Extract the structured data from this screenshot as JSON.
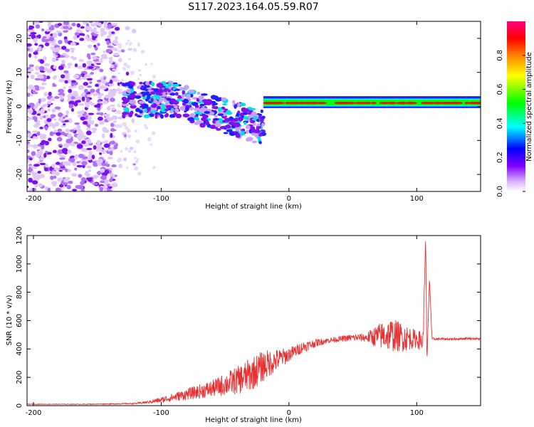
{
  "title": "S117.2023.164.05.59.R07",
  "chart_data": [
    {
      "type": "heatmap",
      "xlabel": "Height of straight line (km)",
      "ylabel": "Frequency (Hz)",
      "xlim": [
        -205,
        150
      ],
      "ylim": [
        -25,
        25
      ],
      "xticks": [
        -200,
        -100,
        0,
        100
      ],
      "yticks": [
        -20,
        -10,
        0,
        10,
        20
      ],
      "colorbar": {
        "label": "Normalized spectral amplitude",
        "range": [
          0,
          1
        ],
        "ticks": [
          0.0,
          0.2,
          0.4,
          0.6,
          0.8
        ],
        "colors": [
          "#ffffff",
          "#c080ff",
          "#8000ff",
          "#0000ff",
          "#00ffff",
          "#00ff00",
          "#ffff00",
          "#ff8000",
          "#ff0000",
          "#ff0080"
        ]
      },
      "description_regions": [
        {
          "x": [
            -205,
            -135
          ],
          "y": [
            -25,
            25
          ],
          "amplitude": 0.1
        },
        {
          "x": [
            -130,
            -20
          ],
          "y": [
            -10,
            8
          ],
          "amplitude": 0.3
        },
        {
          "x": [
            -20,
            150
          ],
          "y": [
            0,
            2
          ],
          "amplitude": 0.85
        }
      ]
    },
    {
      "type": "line",
      "xlabel": "Height of straight line (km)",
      "ylabel": "SNR (10 * v/v)",
      "xlim": [
        -205,
        150
      ],
      "ylim": [
        0,
        1200
      ],
      "xticks": [
        -200,
        -100,
        0,
        100
      ],
      "yticks": [
        0,
        200,
        400,
        600,
        800,
        1000,
        1200
      ],
      "color": "#e83030",
      "series": [
        {
          "x": [
            -205,
            -180,
            -160,
            -140,
            -120,
            -110,
            -100,
            -90,
            -80,
            -70,
            -60,
            -50,
            -40,
            -30,
            -20,
            -10,
            0,
            10,
            20,
            30,
            40,
            50,
            60,
            70,
            80,
            90,
            100,
            105,
            107,
            108,
            110,
            112,
            115,
            120,
            130,
            140,
            150
          ],
          "y": [
            10,
            10,
            10,
            12,
            15,
            25,
            40,
            60,
            80,
            100,
            120,
            150,
            180,
            220,
            280,
            320,
            360,
            410,
            440,
            460,
            470,
            480,
            480,
            490,
            500,
            480,
            470,
            450,
            1200,
            300,
            900,
            470,
            470,
            470,
            470,
            475,
            470
          ],
          "noise": [
            2,
            2,
            2,
            3,
            5,
            10,
            20,
            30,
            40,
            50,
            60,
            80,
            100,
            120,
            110,
            80,
            50,
            40,
            30,
            20,
            20,
            25,
            30,
            90,
            120,
            100,
            60,
            80,
            0,
            0,
            0,
            10,
            8,
            8,
            8,
            8,
            8
          ]
        }
      ]
    }
  ]
}
